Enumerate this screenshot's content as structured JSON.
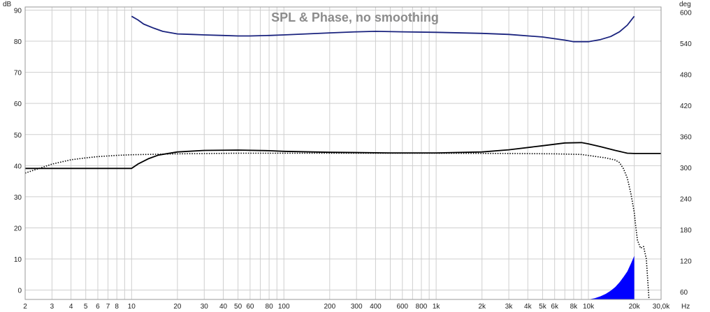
{
  "chart_data": {
    "type": "line",
    "title": "SPL & Phase, no smoothing",
    "left_unit": "dB",
    "right_unit": "deg",
    "x_unit": "Hz",
    "x_scale": "log",
    "xlim": [
      2,
      30000
    ],
    "ylim_left": [
      -3,
      91
    ],
    "ylim_right": [
      45,
      610
    ],
    "grid": true,
    "left_ticks": [
      0,
      10,
      20,
      30,
      40,
      50,
      60,
      70,
      80,
      90
    ],
    "right_ticks": [
      60,
      120,
      180,
      240,
      300,
      360,
      420,
      480,
      540,
      600
    ],
    "x_ticks": [
      {
        "v": 2,
        "t": "2"
      },
      {
        "v": 3,
        "t": "3"
      },
      {
        "v": 4,
        "t": "4"
      },
      {
        "v": 5,
        "t": "5"
      },
      {
        "v": 6,
        "t": "6"
      },
      {
        "v": 7,
        "t": "7"
      },
      {
        "v": 8,
        "t": "8"
      },
      {
        "v": 10,
        "t": "10"
      },
      {
        "v": 20,
        "t": "20"
      },
      {
        "v": 30,
        "t": "30"
      },
      {
        "v": 40,
        "t": "40"
      },
      {
        "v": 50,
        "t": "50"
      },
      {
        "v": 60,
        "t": "60"
      },
      {
        "v": 80,
        "t": "80"
      },
      {
        "v": 100,
        "t": "100"
      },
      {
        "v": 200,
        "t": "200"
      },
      {
        "v": 300,
        "t": "300"
      },
      {
        "v": 400,
        "t": "400"
      },
      {
        "v": 600,
        "t": "600"
      },
      {
        "v": 800,
        "t": "800"
      },
      {
        "v": 1000,
        "t": "1k"
      },
      {
        "v": 2000,
        "t": "2k"
      },
      {
        "v": 3000,
        "t": "3k"
      },
      {
        "v": 4000,
        "t": "4k"
      },
      {
        "v": 5000,
        "t": "5k"
      },
      {
        "v": 6000,
        "t": "6k"
      },
      {
        "v": 8000,
        "t": "8k"
      },
      {
        "v": 10000,
        "t": "10k"
      },
      {
        "v": 20000,
        "t": "20k"
      },
      {
        "v": 30000,
        "t": "30,0k"
      }
    ],
    "series": [
      {
        "axis": "right",
        "color": "#1a237e",
        "x": [
          10,
          11,
          12,
          14,
          16,
          20,
          25,
          30,
          40,
          50,
          60,
          80,
          100,
          200,
          300,
          400,
          600,
          1000,
          2000,
          3000,
          5000,
          7000,
          8000,
          10000,
          12000,
          14000,
          16000,
          18000,
          20000
        ],
        "y": [
          592,
          585,
          577,
          569,
          563,
          558,
          557,
          556,
          555,
          554,
          554,
          555,
          556,
          560,
          562,
          563,
          562,
          561,
          559,
          557,
          552,
          546,
          543,
          543,
          547,
          553,
          562,
          575,
          592
        ]
      },
      {
        "axis": "left",
        "color": "#000000",
        "x": [
          2,
          10,
          11,
          13,
          15,
          20,
          30,
          50,
          80,
          100,
          200,
          500,
          1000,
          2000,
          3000,
          5000,
          7000,
          9000,
          10000,
          12000,
          15000,
          18000,
          20000,
          30000
        ],
        "y": [
          39.1,
          39.1,
          40.5,
          42.3,
          43.4,
          44.4,
          44.9,
          45.0,
          44.8,
          44.6,
          44.3,
          44.1,
          44.1,
          44.4,
          45.1,
          46.4,
          47.3,
          47.4,
          47.0,
          46.1,
          44.9,
          44.0,
          43.9,
          43.9
        ]
      },
      {
        "axis": "left",
        "color": "#000000",
        "style": "dotted",
        "x": [
          2,
          3,
          4,
          5,
          6,
          8,
          10,
          20,
          50,
          100,
          500,
          1000,
          3000,
          6000,
          9000,
          11000,
          13000,
          15000,
          16000,
          17000,
          18000,
          19000,
          20000,
          20500,
          21000,
          22000,
          23000,
          24000,
          25000
        ],
        "y": [
          37.6,
          40.5,
          41.9,
          42.5,
          42.9,
          43.3,
          43.5,
          43.8,
          44.0,
          44.0,
          44.0,
          44.0,
          43.9,
          43.8,
          43.6,
          43.0,
          42.5,
          41.8,
          41.0,
          39.0,
          36.0,
          31.0,
          25.0,
          20.0,
          16.0,
          13.5,
          14.0,
          10.0,
          -3.0
        ]
      },
      {
        "axis": "left",
        "color": "#0000ff",
        "style": "fill",
        "x": [
          10000,
          11000,
          12000,
          13000,
          14000,
          15000,
          16000,
          17000,
          18000,
          19000,
          20000
        ],
        "y": [
          -3,
          -2.6,
          -2.0,
          -1.2,
          -0.2,
          1.0,
          2.5,
          4.2,
          6.0,
          8.5,
          11.0
        ]
      }
    ]
  }
}
